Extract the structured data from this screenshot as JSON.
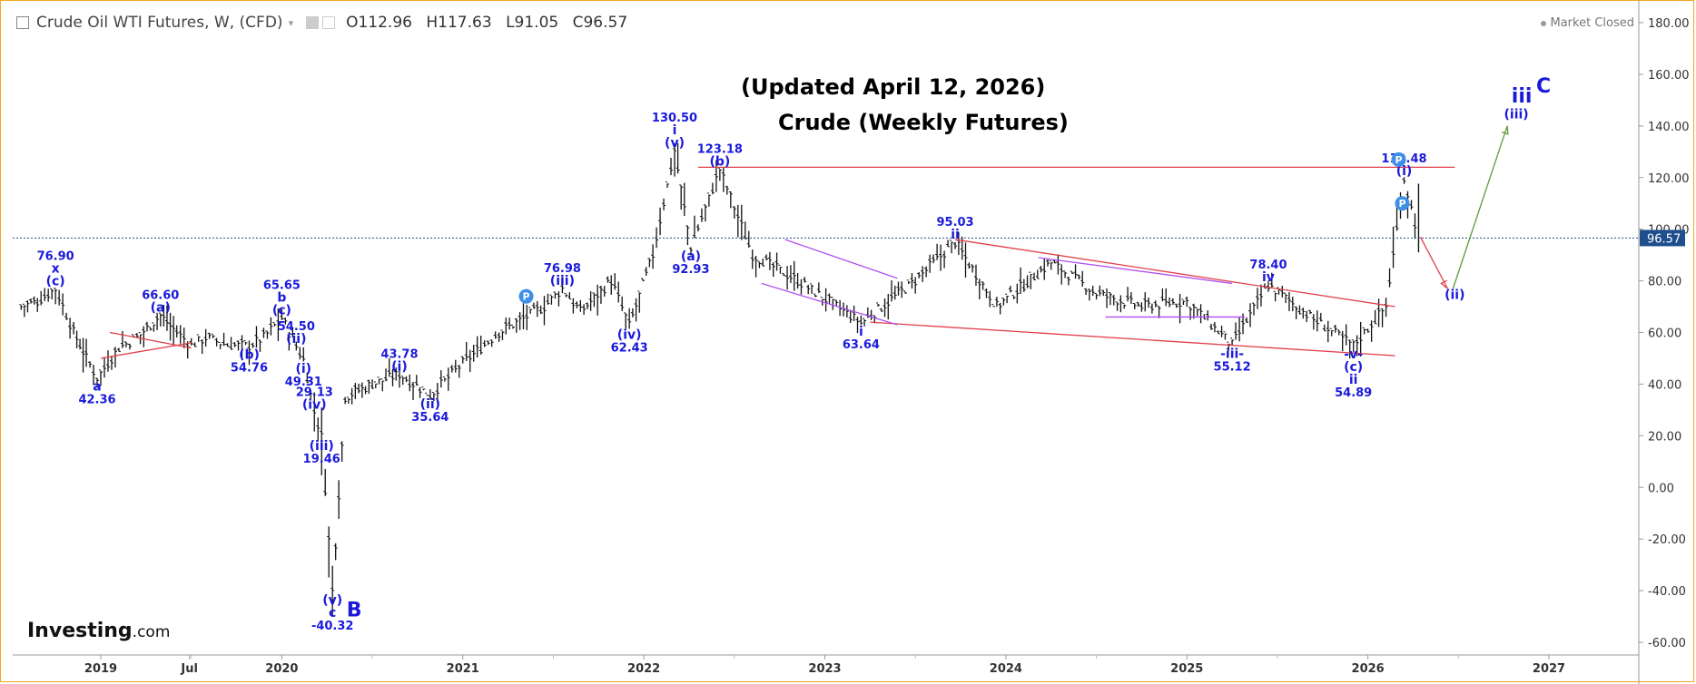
{
  "header": {
    "symbol": "Crude Oil WTI Futures, W, (CFD)",
    "open": "O112.96",
    "high": "H117.63",
    "low": "L91.05",
    "close": "C96.57"
  },
  "market_status": "Market Closed",
  "title_line1": "(Updated April 12, 2026)",
  "title_line2": "Crude (Weekly Futures)",
  "logo_text": "Investing",
  "logo_suffix": ".com",
  "last_price_label": "96.57",
  "colors": {
    "wave_label": "#1a1adb",
    "red_line": "#e0404a",
    "purple_line": "#b050f0",
    "green_line": "#5a9a3a",
    "pivot": "#3d8fe8",
    "bars": "#111111",
    "price_tag": "#1f4e8c"
  },
  "chart_data": {
    "type": "ohlc-bars",
    "period": "weekly",
    "ylim": [
      -60,
      180
    ],
    "yticks": [
      "180.00",
      "160.00",
      "140.00",
      "120.00",
      "100.00",
      "80.00",
      "60.00",
      "40.00",
      "20.00",
      "0.00",
      "-20.00",
      "-40.00",
      "-60.00"
    ],
    "xticks": [
      "2019",
      "Jul",
      "2020",
      "2021",
      "2022",
      "2023",
      "2024",
      "2025",
      "2026",
      "2027"
    ],
    "series": [
      {
        "values": [
          [
            2018.56,
            70
          ],
          [
            2018.65,
            72
          ],
          [
            2018.75,
            76.9
          ],
          [
            2018.85,
            60
          ],
          [
            2018.92,
            50
          ],
          [
            2018.98,
            42.36
          ],
          [
            2019.1,
            54
          ],
          [
            2019.2,
            58
          ],
          [
            2019.33,
            66.6
          ],
          [
            2019.42,
            60
          ],
          [
            2019.5,
            55
          ],
          [
            2019.58,
            58
          ],
          [
            2019.7,
            55
          ],
          [
            2019.82,
            54.76
          ],
          [
            2019.9,
            58
          ],
          [
            2020.0,
            65.65
          ],
          [
            2020.08,
            54.5
          ],
          [
            2020.12,
            49.31
          ],
          [
            2020.18,
            29.13
          ],
          [
            2020.22,
            19.46
          ],
          [
            2020.28,
            -40.32
          ],
          [
            2020.35,
            35
          ],
          [
            2020.5,
            40
          ],
          [
            2020.65,
            43.78
          ],
          [
            2020.82,
            35.64
          ],
          [
            2021.0,
            48
          ],
          [
            2021.2,
            60
          ],
          [
            2021.45,
            70
          ],
          [
            2021.55,
            76.98
          ],
          [
            2021.65,
            68
          ],
          [
            2021.82,
            80
          ],
          [
            2021.92,
            62.43
          ],
          [
            2022.05,
            90
          ],
          [
            2022.17,
            130.5
          ],
          [
            2022.26,
            92.93
          ],
          [
            2022.42,
            123.18
          ],
          [
            2022.6,
            90
          ],
          [
            2022.85,
            80
          ],
          [
            2023.2,
            63.64
          ],
          [
            2023.5,
            80
          ],
          [
            2023.72,
            95.03
          ],
          [
            2023.95,
            70
          ],
          [
            2024.25,
            87
          ],
          [
            2024.5,
            75
          ],
          [
            2024.75,
            70
          ],
          [
            2025.0,
            72
          ],
          [
            2025.25,
            55.12
          ],
          [
            2025.45,
            78.4
          ],
          [
            2025.7,
            65
          ],
          [
            2025.92,
            54.89
          ],
          [
            2026.1,
            70
          ],
          [
            2026.2,
            119.48
          ],
          [
            2026.28,
            96.57
          ]
        ]
      }
    ],
    "annotations": [
      {
        "x": 2018.75,
        "y": 76.9,
        "text": "76.90",
        "mark": "x\n(c)",
        "pos": "above"
      },
      {
        "x": 2018.98,
        "y": 42.36,
        "text": "42.36",
        "mark": "a",
        "pos": "below"
      },
      {
        "x": 2019.33,
        "y": 66.6,
        "text": "66.60",
        "mark": "(a)",
        "pos": "above"
      },
      {
        "x": 2019.82,
        "y": 54.76,
        "text": "54.76",
        "mark": "(b)",
        "pos": "below"
      },
      {
        "x": 2020.0,
        "y": 65.65,
        "text": "65.65",
        "mark": "b\n(c)",
        "pos": "above"
      },
      {
        "x": 2020.08,
        "y": 54.5,
        "text": "54.50",
        "mark": "(ii)",
        "pos": "above"
      },
      {
        "x": 2020.12,
        "y": 49.31,
        "text": "49.31",
        "mark": "(i)",
        "pos": "below"
      },
      {
        "x": 2020.18,
        "y": 29.13,
        "text": "29.13",
        "mark": "(iv)",
        "pos": "above"
      },
      {
        "x": 2020.22,
        "y": 19.46,
        "text": "19.46",
        "mark": "(iii)",
        "pos": "below"
      },
      {
        "x": 2020.28,
        "y": -40.32,
        "text": "-40.32",
        "mark": "(v)\nc",
        "pos": "below"
      },
      {
        "x": 2020.65,
        "y": 43.78,
        "text": "43.78",
        "mark": "(i)",
        "pos": "above"
      },
      {
        "x": 2020.82,
        "y": 35.64,
        "text": "35.64",
        "mark": "(ii)",
        "pos": "below"
      },
      {
        "x": 2021.55,
        "y": 76.98,
        "text": "76.98",
        "mark": "(iii)",
        "pos": "above"
      },
      {
        "x": 2021.92,
        "y": 62.43,
        "text": "62.43",
        "mark": "(iv)",
        "pos": "below"
      },
      {
        "x": 2022.17,
        "y": 130.5,
        "text": "130.50",
        "mark": "i\n(v)",
        "pos": "above"
      },
      {
        "x": 2022.26,
        "y": 92.93,
        "text": "92.93",
        "mark": "(a)",
        "pos": "below"
      },
      {
        "x": 2022.42,
        "y": 123.18,
        "text": "123.18",
        "mark": "(b)",
        "pos": "above"
      },
      {
        "x": 2023.2,
        "y": 63.64,
        "text": "63.64",
        "mark": "i",
        "pos": "below"
      },
      {
        "x": 2023.72,
        "y": 95.03,
        "text": "95.03",
        "mark": "ii",
        "pos": "above"
      },
      {
        "x": 2025.25,
        "y": 55.12,
        "text": "55.12",
        "mark": "-iii-",
        "pos": "below"
      },
      {
        "x": 2025.45,
        "y": 78.4,
        "text": "78.40",
        "mark": "iv",
        "pos": "above"
      },
      {
        "x": 2025.92,
        "y": 54.89,
        "text": "54.89",
        "mark": "-v-\n(c)\nii",
        "pos": "below"
      },
      {
        "x": 2026.2,
        "y": 119.48,
        "text": "119.48",
        "mark": "(i)",
        "pos": "above"
      }
    ],
    "big_labels": [
      {
        "text": "B",
        "x": 2020.4,
        "y": -50
      },
      {
        "text": "iii",
        "x": 2026.85,
        "y": 149
      },
      {
        "text": "C",
        "x": 2026.97,
        "y": 153
      },
      {
        "text": "(ii)",
        "x": 2026.48,
        "y": 73
      },
      {
        "text": "(iii)",
        "x": 2026.82,
        "y": 143
      }
    ],
    "lines": [
      {
        "color": "red",
        "from": [
          2022.3,
          124
        ],
        "to": [
          2026.48,
          124
        ]
      },
      {
        "color": "red",
        "from": [
          2023.72,
          96
        ],
        "to": [
          2026.15,
          70
        ]
      },
      {
        "color": "red",
        "from": [
          2023.25,
          64
        ],
        "to": [
          2026.15,
          51
        ]
      },
      {
        "color": "red",
        "from": [
          2019.05,
          60
        ],
        "to": [
          2019.5,
          54
        ]
      },
      {
        "color": "red",
        "from": [
          2019.0,
          50
        ],
        "to": [
          2019.5,
          56
        ]
      },
      {
        "color": "purple",
        "from": [
          2022.78,
          96
        ],
        "to": [
          2023.4,
          81
        ]
      },
      {
        "color": "purple",
        "from": [
          2022.65,
          79
        ],
        "to": [
          2023.4,
          63
        ]
      },
      {
        "color": "purple",
        "from": [
          2024.18,
          89
        ],
        "to": [
          2025.25,
          79
        ]
      },
      {
        "color": "purple",
        "from": [
          2024.55,
          66
        ],
        "to": [
          2025.32,
          66
        ]
      },
      {
        "color": "red",
        "from": [
          2026.29,
          97
        ],
        "to": [
          2026.44,
          77
        ]
      },
      {
        "color": "green",
        "from": [
          2026.47,
          77
        ],
        "to": [
          2026.77,
          140
        ]
      }
    ],
    "pivots": [
      {
        "x": 2021.35,
        "y": 74
      },
      {
        "x": 2026.17,
        "y": 127
      },
      {
        "x": 2026.19,
        "y": 110
      }
    ]
  }
}
